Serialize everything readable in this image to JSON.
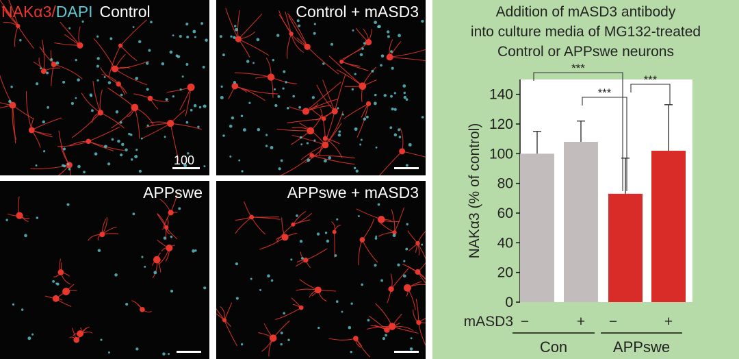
{
  "panels": [
    {
      "label": "Control",
      "scale_text": "100"
    },
    {
      "label": "Control + mASD3"
    },
    {
      "label": "APPswe"
    },
    {
      "label": "APPswe + mASD3"
    }
  ],
  "stain": {
    "marker": "NAKα3",
    "separator": "/",
    "counterstain": "DAPI"
  },
  "colors": {
    "nak_red": "#e8372c",
    "dapi_cyan": "#5ec8d2",
    "control_bar": "#c2bcbc",
    "appswe_bar": "#d92b27",
    "chart_background": "#b7dba8"
  },
  "chart_data": {
    "type": "bar",
    "title_lines": [
      "Addition of mASD3 antibody",
      "into culture media of MG132-treated",
      "Control or APPswe neurons"
    ],
    "ylabel": "NAKα3 (% of control)",
    "ylim": [
      0,
      150
    ],
    "yticks": [
      0,
      20,
      40,
      60,
      80,
      100,
      120,
      140
    ],
    "treatment_label": "mASD3",
    "categories": [
      "−",
      "+",
      "−",
      "+"
    ],
    "groups": [
      {
        "name": "Con",
        "bars": [
          0,
          1
        ]
      },
      {
        "name": "APPswe",
        "bars": [
          2,
          3
        ]
      }
    ],
    "values": [
      100,
      108,
      73,
      102
    ],
    "errors": [
      15,
      14,
      24,
      31
    ],
    "bar_colors": [
      "#c2bcbc",
      "#c2bcbc",
      "#d92b27",
      "#d92b27"
    ],
    "significance": [
      {
        "from": 0,
        "to": 2,
        "label": "***"
      },
      {
        "from": 1,
        "to": 2,
        "label": "***"
      },
      {
        "from": 2,
        "to": 3,
        "label": "***"
      }
    ]
  }
}
